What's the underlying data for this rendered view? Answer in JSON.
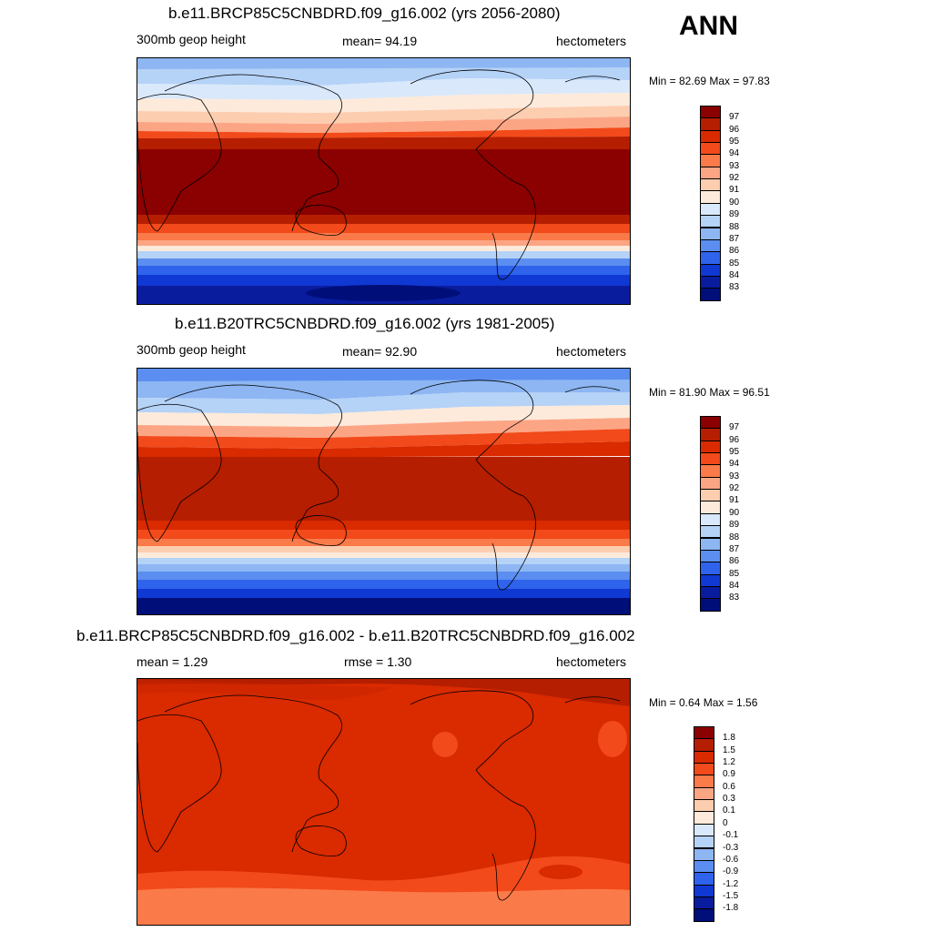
{
  "season": "ANN",
  "panels": [
    {
      "title": "b.e11.BRCP85C5CNBDRD.f09_g16.002 (yrs 2056-2080)",
      "left_label": "300mb geop height",
      "center_label": "mean=  94.19",
      "right_label": "hectometers",
      "minmax": "Min =  82.69 Max =  97.83",
      "colorbar_labels": [
        "97",
        "96",
        "95",
        "94",
        "93",
        "92",
        "91",
        "90",
        "89",
        "88",
        "87",
        "86",
        "85",
        "84",
        "83"
      ],
      "colors": [
        "#8b0000",
        "#b51e00",
        "#d92a00",
        "#f24a1a",
        "#fb7a4a",
        "#fca585",
        "#fdcdb0",
        "#fdeadb",
        "#d9e8fb",
        "#b5d2f7",
        "#8db6f3",
        "#5b8ef0",
        "#2f63ec",
        "#1038d2",
        "#0a1c9e",
        "#000e7a"
      ]
    },
    {
      "title": "b.e11.B20TRC5CNBDRD.f09_g16.002 (yrs 1981-2005)",
      "left_label": "300mb geop height",
      "center_label": "mean=  92.90",
      "right_label": "hectometers",
      "minmax": "Min =  81.90 Max =  96.51",
      "colorbar_labels": [
        "97",
        "96",
        "95",
        "94",
        "93",
        "92",
        "91",
        "90",
        "89",
        "88",
        "87",
        "86",
        "85",
        "84",
        "83"
      ],
      "colors": [
        "#8b0000",
        "#b51e00",
        "#d92a00",
        "#f24a1a",
        "#fb7a4a",
        "#fca585",
        "#fdcdb0",
        "#fdeadb",
        "#d9e8fb",
        "#b5d2f7",
        "#8db6f3",
        "#5b8ef0",
        "#2f63ec",
        "#1038d2",
        "#0a1c9e",
        "#000e7a"
      ]
    },
    {
      "title": "b.e11.BRCP85C5CNBDRD.f09_g16.002 - b.e11.B20TRC5CNBDRD.f09_g16.002",
      "left_label": "mean =   1.29",
      "center_label": "rmse =   1.30",
      "right_label": "hectometers",
      "minmax": "Min =   0.64 Max =   1.56",
      "colorbar_labels": [
        "1.8",
        "1.5",
        "1.2",
        "0.9",
        "0.6",
        "0.3",
        "0.1",
        "0",
        "-0.1",
        "-0.3",
        "-0.6",
        "-0.9",
        "-1.2",
        "-1.5",
        "-1.8"
      ],
      "colors": [
        "#8b0000",
        "#b51e00",
        "#d92a00",
        "#f24a1a",
        "#fb7a4a",
        "#fca585",
        "#fdcdb0",
        "#fdeadb",
        "#d9e8fb",
        "#b5d2f7",
        "#8db6f3",
        "#5b8ef0",
        "#2f63ec",
        "#1038d2",
        "#0a1c9e",
        "#000e7a"
      ]
    }
  ]
}
